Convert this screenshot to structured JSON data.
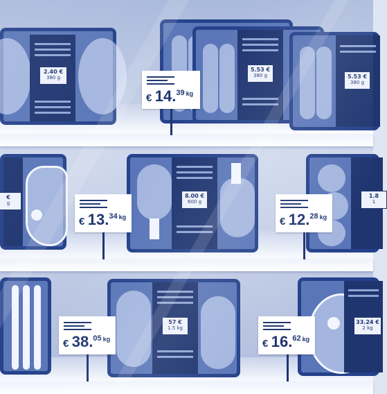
{
  "shelves": [
    {
      "label": {
        "currency": "€",
        "whole": "14.",
        "cents": "39",
        "unit": "kg"
      },
      "packs": [
        {
          "price": "2.40 €",
          "weight": "380 g"
        },
        {
          "price": "5.53 €",
          "weight": "380 g"
        },
        {
          "price": "5.53 €",
          "weight": "380 g"
        }
      ]
    },
    {
      "labels": [
        {
          "currency": "€",
          "whole": "13.",
          "cents": "34",
          "unit": "kg"
        },
        {
          "currency": "€",
          "whole": "12.",
          "cents": "28",
          "unit": "kg"
        }
      ],
      "packs": [
        {
          "price": "€",
          "weight": "g"
        },
        {
          "price": "8.00 €",
          "weight": "600 g"
        },
        {
          "price": "1.8",
          "weight": "1"
        }
      ]
    },
    {
      "labels": [
        {
          "currency": "€",
          "whole": "38.",
          "cents": "05",
          "unit": "kg"
        },
        {
          "currency": "€",
          "whole": "16.",
          "cents": "62",
          "unit": "kg"
        }
      ],
      "packs": [
        {
          "price": "57 €",
          "weight": "1.5 kg"
        },
        {
          "price": "33.24 €",
          "weight": "2 kg"
        }
      ]
    }
  ],
  "colors": {
    "navy": "#1f3570",
    "pack_blue": "#5a76b8",
    "wall": "#a9b9dc"
  }
}
